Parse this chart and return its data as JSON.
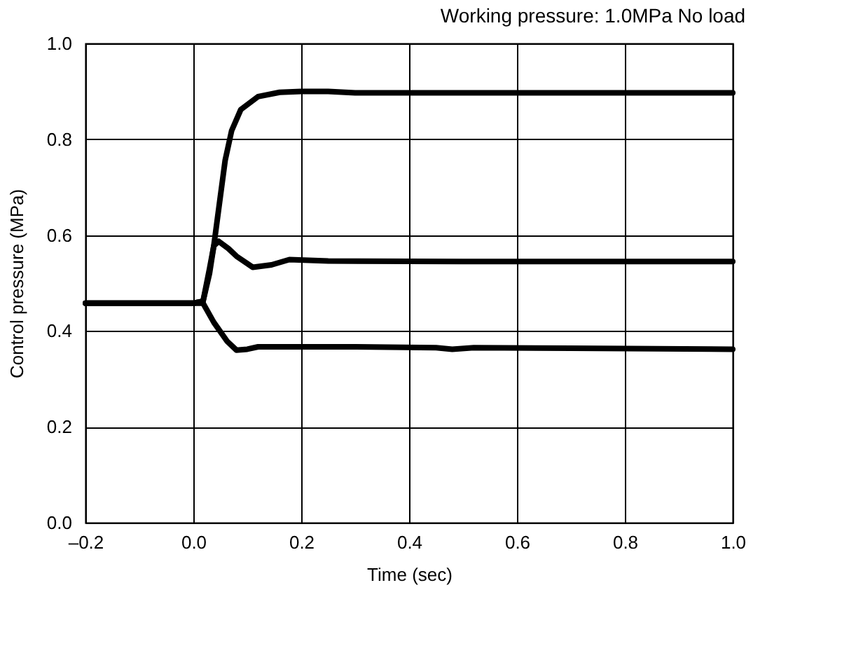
{
  "chart_data": {
    "type": "line",
    "title": "Working pressure: 1.0MPa   No load",
    "xlabel": "Time (sec)",
    "ylabel": "Control pressure (MPa)",
    "xlim": [
      -0.2,
      1.0
    ],
    "ylim": [
      0.0,
      1.0
    ],
    "xticks": [
      {
        "value": -0.2,
        "label": "–0.2"
      },
      {
        "value": 0,
        "label": "0.0"
      },
      {
        "value": 0.2,
        "label": "0.2"
      },
      {
        "value": 0.4,
        "label": "0.4"
      },
      {
        "value": 0.6,
        "label": "0.6"
      },
      {
        "value": 0.8,
        "label": "0.8"
      },
      {
        "value": 1.0,
        "label": "1.0"
      }
    ],
    "yticks": [
      {
        "value": 0,
        "label": "0.0"
      },
      {
        "value": 0.2,
        "label": "0.2"
      },
      {
        "value": 0.4,
        "label": "0.4"
      },
      {
        "value": 0.6,
        "label": "0.6"
      },
      {
        "value": 0.8,
        "label": "0.8"
      },
      {
        "value": 1.0,
        "label": "1.0"
      }
    ],
    "grid": true,
    "marker": "none",
    "line_style": "solid",
    "series": [
      {
        "color": "#000000",
        "x": [
          -0.2,
          0.0,
          0.018,
          0.03,
          0.038,
          0.05,
          0.059,
          0.071,
          0.088,
          0.12,
          0.16,
          0.2,
          0.25,
          0.3,
          0.5,
          1.0
        ],
        "values": [
          0.458,
          0.458,
          0.462,
          0.52,
          0.578,
          0.68,
          0.756,
          0.818,
          0.862,
          0.889,
          0.898,
          0.9,
          0.9,
          0.897,
          0.897,
          0.897
        ]
      },
      {
        "color": "#000000",
        "x": [
          -0.2,
          0.0,
          0.018,
          0.03,
          0.038,
          0.047,
          0.065,
          0.08,
          0.11,
          0.145,
          0.178,
          0.25,
          0.5,
          1.0
        ],
        "values": [
          0.458,
          0.458,
          0.462,
          0.53,
          0.578,
          0.587,
          0.572,
          0.556,
          0.533,
          0.538,
          0.549,
          0.546,
          0.545,
          0.545
        ]
      },
      {
        "color": "#000000",
        "x": [
          -0.2,
          0.0,
          0.018,
          0.038,
          0.063,
          0.08,
          0.1,
          0.12,
          0.3,
          0.45,
          0.48,
          0.52,
          0.7,
          1.0
        ],
        "values": [
          0.458,
          0.458,
          0.458,
          0.418,
          0.378,
          0.36,
          0.362,
          0.367,
          0.367,
          0.365,
          0.362,
          0.365,
          0.364,
          0.362
        ]
      }
    ]
  }
}
